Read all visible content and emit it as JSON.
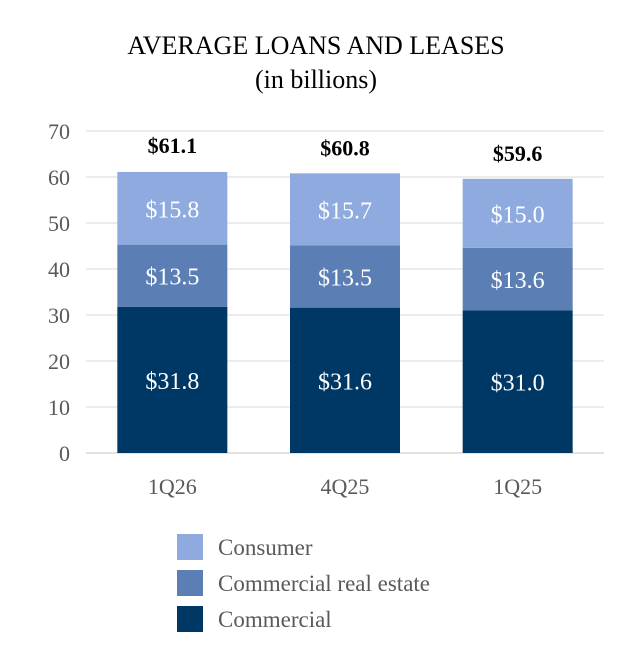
{
  "chart_data": {
    "type": "bar",
    "stacked": true,
    "title": "AVERAGE LOANS AND LEASES",
    "subtitle": "(in billions)",
    "categories": [
      "1Q26",
      "4Q25",
      "1Q25"
    ],
    "series": [
      {
        "name": "Commercial",
        "values": [
          31.8,
          31.6,
          31.0
        ],
        "labels": [
          "$31.8",
          "$31.6",
          "$31.0"
        ],
        "color": "#003865"
      },
      {
        "name": "Commercial real estate",
        "values": [
          13.5,
          13.5,
          13.6
        ],
        "labels": [
          "$13.5",
          "$13.5",
          "$13.6"
        ],
        "color": "#5b7fb5"
      },
      {
        "name": "Consumer",
        "values": [
          15.8,
          15.7,
          15.0
        ],
        "labels": [
          "$15.8",
          "$15.7",
          "$15.0"
        ],
        "color": "#8eaadf"
      }
    ],
    "totals": [
      "$61.1",
      "$60.8",
      "$59.6"
    ],
    "ylim": [
      0,
      70
    ],
    "yticks": [
      "0",
      "10",
      "20",
      "30",
      "40",
      "50",
      "60",
      "70"
    ],
    "grid": true,
    "legend_position": "bottom",
    "legend_order": [
      "Consumer",
      "Commercial real estate",
      "Commercial"
    ]
  }
}
